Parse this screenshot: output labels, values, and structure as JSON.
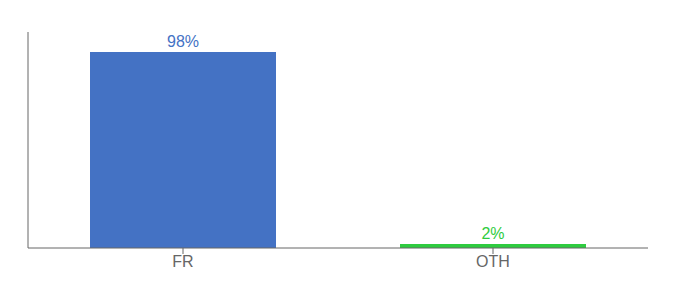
{
  "chart_data": {
    "type": "bar",
    "categories": [
      "FR",
      "OTH"
    ],
    "values": [
      98,
      2
    ],
    "value_labels": [
      "98%",
      "2%"
    ],
    "colors": [
      "#4472c4",
      "#2ecc40"
    ],
    "ylim": [
      0,
      108
    ],
    "data_labels": true,
    "tick_labels": "x",
    "grid": false
  }
}
